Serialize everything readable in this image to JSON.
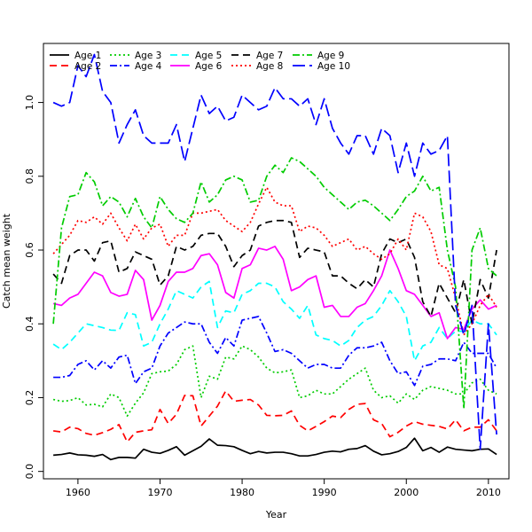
{
  "chart_data": {
    "type": "line",
    "xlabel": "Year",
    "ylabel": "Catch mean weight",
    "xlim": [
      1955.8,
      2012.5
    ],
    "ylim": [
      -0.02,
      1.16
    ],
    "x_ticks": [
      1960,
      1970,
      1980,
      1990,
      2000,
      2010
    ],
    "y_ticks": [
      0.0,
      0.2,
      0.4,
      0.6,
      0.8,
      1.0
    ],
    "y_tick_labels": [
      "0.0",
      "0.2",
      "0.4",
      "0.6",
      "0.8",
      "1.0"
    ],
    "legend_position": "top-left",
    "x": [
      1957,
      1958,
      1959,
      1960,
      1961,
      1962,
      1963,
      1964,
      1965,
      1966,
      1967,
      1968,
      1969,
      1970,
      1971,
      1972,
      1973,
      1974,
      1975,
      1976,
      1977,
      1978,
      1979,
      1980,
      1981,
      1982,
      1983,
      1984,
      1985,
      1986,
      1987,
      1988,
      1989,
      1990,
      1991,
      1992,
      1993,
      1994,
      1995,
      1996,
      1997,
      1998,
      1999,
      2000,
      2001,
      2002,
      2003,
      2004,
      2005,
      2006,
      2007,
      2008,
      2009,
      2010,
      2011
    ],
    "series": [
      {
        "name": "Age 1",
        "color": "#000000",
        "dash": "solid",
        "values": [
          0.044,
          0.046,
          0.05,
          0.045,
          0.044,
          0.041,
          0.046,
          0.032,
          0.038,
          0.038,
          0.036,
          0.06,
          0.052,
          0.049,
          0.057,
          0.067,
          0.044,
          0.056,
          0.068,
          0.088,
          0.071,
          0.07,
          0.067,
          0.057,
          0.048,
          0.054,
          0.05,
          0.052,
          0.052,
          0.048,
          0.042,
          0.042,
          0.046,
          0.052,
          0.055,
          0.053,
          0.06,
          0.062,
          0.07,
          0.055,
          0.045,
          0.048,
          0.054,
          0.065,
          0.09,
          0.056,
          0.065,
          0.052,
          0.066,
          0.06,
          0.058,
          0.056,
          0.06,
          0.061,
          0.046
        ]
      },
      {
        "name": "Age 2",
        "color": "#ff0000",
        "dash": "dash",
        "values": [
          0.11,
          0.107,
          0.12,
          0.116,
          0.103,
          0.098,
          0.105,
          0.114,
          0.127,
          0.08,
          0.106,
          0.11,
          0.113,
          0.168,
          0.13,
          0.155,
          0.206,
          0.205,
          0.123,
          0.15,
          0.177,
          0.218,
          0.19,
          0.193,
          0.195,
          0.18,
          0.152,
          0.151,
          0.152,
          0.164,
          0.125,
          0.11,
          0.122,
          0.135,
          0.15,
          0.146,
          0.168,
          0.182,
          0.184,
          0.14,
          0.13,
          0.094,
          0.106,
          0.123,
          0.135,
          0.128,
          0.125,
          0.122,
          0.115,
          0.14,
          0.11,
          0.12,
          0.12,
          0.14,
          0.11
        ]
      },
      {
        "name": "Age 3",
        "color": "#00cc00",
        "dash": "dot",
        "values": [
          0.195,
          0.19,
          0.192,
          0.2,
          0.18,
          0.182,
          0.175,
          0.21,
          0.2,
          0.15,
          0.185,
          0.213,
          0.265,
          0.27,
          0.272,
          0.29,
          0.33,
          0.34,
          0.2,
          0.258,
          0.25,
          0.31,
          0.305,
          0.34,
          0.33,
          0.31,
          0.28,
          0.267,
          0.27,
          0.275,
          0.2,
          0.205,
          0.22,
          0.21,
          0.21,
          0.23,
          0.25,
          0.265,
          0.28,
          0.22,
          0.2,
          0.205,
          0.185,
          0.21,
          0.195,
          0.22,
          0.23,
          0.225,
          0.22,
          0.21,
          0.21,
          0.24,
          0.25,
          0.22,
          0.21
        ]
      },
      {
        "name": "Age 4",
        "color": "#0000ff",
        "dash": "dashdot",
        "values": [
          0.255,
          0.255,
          0.26,
          0.29,
          0.3,
          0.275,
          0.3,
          0.28,
          0.31,
          0.315,
          0.238,
          0.27,
          0.28,
          0.34,
          0.375,
          0.39,
          0.405,
          0.4,
          0.4,
          0.35,
          0.32,
          0.363,
          0.34,
          0.41,
          0.415,
          0.42,
          0.375,
          0.325,
          0.33,
          0.32,
          0.3,
          0.28,
          0.29,
          0.29,
          0.28,
          0.28,
          0.315,
          0.335,
          0.335,
          0.34,
          0.35,
          0.3,
          0.265,
          0.27,
          0.233,
          0.285,
          0.29,
          0.305,
          0.305,
          0.3,
          0.35,
          0.32,
          0.32,
          0.32,
          0.28
        ]
      },
      {
        "name": "Age 5",
        "color": "#00ffff",
        "dash": "dash",
        "values": [
          0.345,
          0.33,
          0.35,
          0.375,
          0.4,
          0.395,
          0.39,
          0.383,
          0.382,
          0.43,
          0.425,
          0.34,
          0.35,
          0.4,
          0.44,
          0.49,
          0.48,
          0.47,
          0.5,
          0.515,
          0.39,
          0.435,
          0.43,
          0.48,
          0.49,
          0.51,
          0.51,
          0.5,
          0.46,
          0.44,
          0.415,
          0.45,
          0.37,
          0.36,
          0.355,
          0.34,
          0.355,
          0.39,
          0.41,
          0.42,
          0.45,
          0.49,
          0.46,
          0.42,
          0.3,
          0.34,
          0.35,
          0.39,
          0.36,
          0.38,
          0.38,
          0.41,
          0.4,
          0.4,
          0.37
        ]
      },
      {
        "name": "Age 6",
        "color": "#ff00ff",
        "dash": "solid",
        "values": [
          0.455,
          0.45,
          0.47,
          0.48,
          0.51,
          0.54,
          0.53,
          0.485,
          0.475,
          0.48,
          0.545,
          0.52,
          0.41,
          0.45,
          0.515,
          0.54,
          0.54,
          0.55,
          0.585,
          0.59,
          0.56,
          0.485,
          0.47,
          0.55,
          0.56,
          0.605,
          0.6,
          0.61,
          0.575,
          0.49,
          0.5,
          0.52,
          0.53,
          0.445,
          0.45,
          0.42,
          0.42,
          0.445,
          0.455,
          0.49,
          0.53,
          0.6,
          0.55,
          0.49,
          0.48,
          0.45,
          0.42,
          0.43,
          0.36,
          0.39,
          0.385,
          0.44,
          0.465,
          0.44,
          0.45
        ]
      },
      {
        "name": "Age 7",
        "color": "#000000",
        "dash": "dash",
        "values": [
          0.535,
          0.51,
          0.585,
          0.6,
          0.6,
          0.57,
          0.62,
          0.625,
          0.54,
          0.55,
          0.595,
          0.585,
          0.575,
          0.505,
          0.53,
          0.61,
          0.6,
          0.61,
          0.64,
          0.645,
          0.645,
          0.61,
          0.555,
          0.585,
          0.6,
          0.665,
          0.675,
          0.68,
          0.68,
          0.675,
          0.58,
          0.605,
          0.6,
          0.595,
          0.53,
          0.53,
          0.51,
          0.495,
          0.52,
          0.5,
          0.59,
          0.63,
          0.62,
          0.63,
          0.58,
          0.46,
          0.42,
          0.51,
          0.47,
          0.43,
          0.52,
          0.4,
          0.52,
          0.47,
          0.6
        ]
      },
      {
        "name": "Age 8",
        "color": "#ff0000",
        "dash": "dot",
        "values": [
          0.59,
          0.615,
          0.64,
          0.68,
          0.675,
          0.69,
          0.67,
          0.7,
          0.66,
          0.625,
          0.67,
          0.63,
          0.66,
          0.67,
          0.61,
          0.64,
          0.64,
          0.7,
          0.7,
          0.705,
          0.71,
          0.68,
          0.665,
          0.65,
          0.675,
          0.725,
          0.77,
          0.73,
          0.72,
          0.72,
          0.65,
          0.665,
          0.66,
          0.64,
          0.61,
          0.62,
          0.63,
          0.6,
          0.61,
          0.59,
          0.575,
          0.59,
          0.63,
          0.6,
          0.7,
          0.69,
          0.65,
          0.56,
          0.55,
          0.47,
          0.37,
          0.4,
          0.45,
          0.48,
          0.445
        ]
      },
      {
        "name": "Age 9",
        "color": "#00cc00",
        "dash": "dashdot",
        "values": [
          0.4,
          0.66,
          0.745,
          0.75,
          0.81,
          0.785,
          0.72,
          0.745,
          0.73,
          0.69,
          0.74,
          0.69,
          0.66,
          0.745,
          0.71,
          0.685,
          0.675,
          0.7,
          0.785,
          0.73,
          0.75,
          0.79,
          0.8,
          0.79,
          0.73,
          0.735,
          0.8,
          0.83,
          0.81,
          0.85,
          0.84,
          0.82,
          0.8,
          0.77,
          0.75,
          0.73,
          0.71,
          0.73,
          0.735,
          0.72,
          0.7,
          0.68,
          0.71,
          0.745,
          0.76,
          0.8,
          0.76,
          0.77,
          0.6,
          0.5,
          0.17,
          0.6,
          0.66,
          0.55,
          0.53
        ]
      },
      {
        "name": "Age 10",
        "color": "#0000ff",
        "dash": "longdash",
        "values": [
          1.0,
          0.99,
          1.0,
          1.1,
          1.07,
          1.13,
          1.03,
          1.0,
          0.89,
          0.94,
          0.98,
          0.91,
          0.89,
          0.89,
          0.89,
          0.94,
          0.84,
          0.93,
          1.02,
          0.97,
          0.99,
          0.95,
          0.96,
          1.02,
          1.0,
          0.98,
          0.99,
          1.04,
          1.01,
          1.01,
          0.99,
          1.01,
          0.94,
          1.01,
          0.93,
          0.89,
          0.86,
          0.91,
          0.91,
          0.86,
          0.93,
          0.91,
          0.81,
          0.89,
          0.8,
          0.89,
          0.86,
          0.87,
          0.91,
          0.45,
          0.37,
          0.45,
          0.06,
          0.4,
          0.1
        ]
      }
    ]
  }
}
